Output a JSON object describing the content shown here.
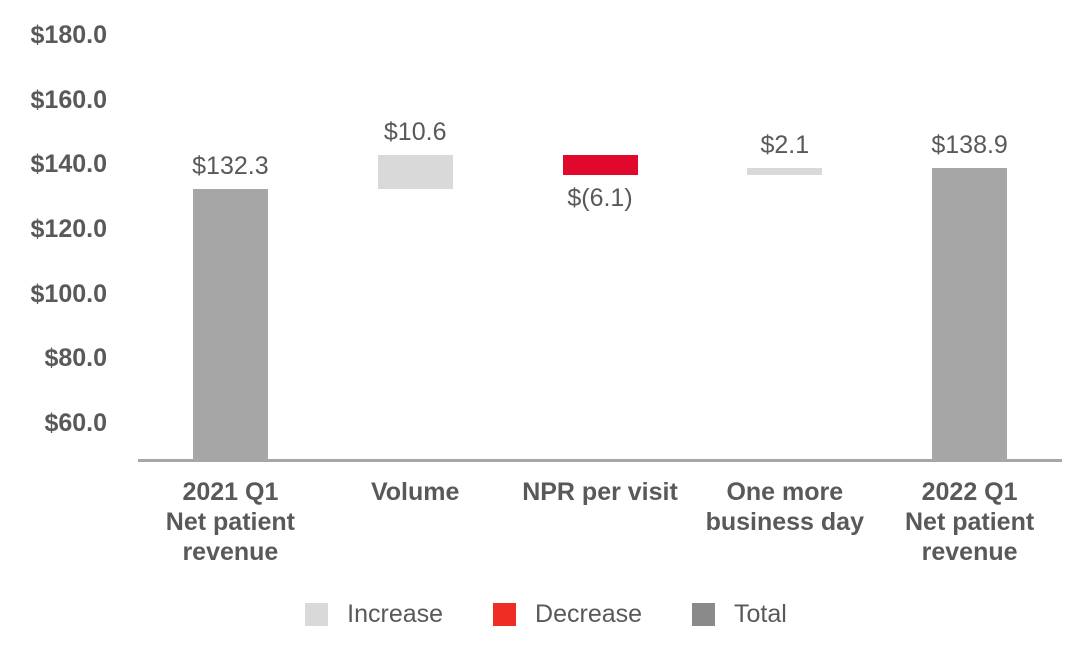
{
  "chart_data": {
    "type": "bar",
    "subtype": "waterfall",
    "title": "",
    "xlabel": "",
    "ylabel": "",
    "categories": [
      [
        "2021 Q1",
        "Net patient",
        "revenue"
      ],
      [
        "Volume"
      ],
      [
        "NPR per visit"
      ],
      [
        "One more",
        "business day"
      ],
      [
        "2022 Q1",
        "Net patient",
        "revenue"
      ]
    ],
    "bars": [
      {
        "name": "2021 Q1 Net patient revenue",
        "slug": "2021-q1-net-patient-revenue",
        "kind": "total",
        "value": 132.3,
        "start": null,
        "end": 132.3,
        "label": "$132.3",
        "label_position": "above"
      },
      {
        "name": "Volume",
        "slug": "volume",
        "kind": "increase",
        "value": 10.6,
        "start": 132.3,
        "end": 142.9,
        "label": "$10.6",
        "label_position": "above"
      },
      {
        "name": "NPR per visit",
        "slug": "npr-per-visit",
        "kind": "decrease",
        "value": -6.1,
        "start": 142.9,
        "end": 136.8,
        "label": "$(6.1)",
        "label_position": "below"
      },
      {
        "name": "One more business day",
        "slug": "one-more-business-day",
        "kind": "increase",
        "value": 2.1,
        "start": 136.8,
        "end": 138.9,
        "label": "$2.1",
        "label_position": "above"
      },
      {
        "name": "2022 Q1 Net patient revenue",
        "slug": "2022-q1-net-patient-revenue",
        "kind": "total",
        "value": 138.9,
        "start": null,
        "end": 138.9,
        "label": "$138.9",
        "label_position": "above"
      }
    ],
    "y_axis": {
      "tick_labels": [
        "$180.0",
        "$160.0",
        "$140.0",
        "$120.0",
        "$100.0",
        "$80.0",
        "$60.0"
      ],
      "tick_values": [
        180,
        160,
        140,
        120,
        100,
        80,
        60
      ],
      "min": 48.6,
      "max": 180,
      "gridlines": false
    },
    "legend": {
      "position": "bottom",
      "items": [
        {
          "label": "Increase",
          "color": "#D9D9D9"
        },
        {
          "label": "Decrease",
          "color": "#EE2D24"
        },
        {
          "label": "Total",
          "color": "#8A8A8A"
        }
      ]
    },
    "colors": {
      "total": "#A6A6A6",
      "increase": "#D9D9D9",
      "decrease": "#E1082D",
      "axis_line": "#A6A6A6",
      "text": "#595959"
    }
  }
}
